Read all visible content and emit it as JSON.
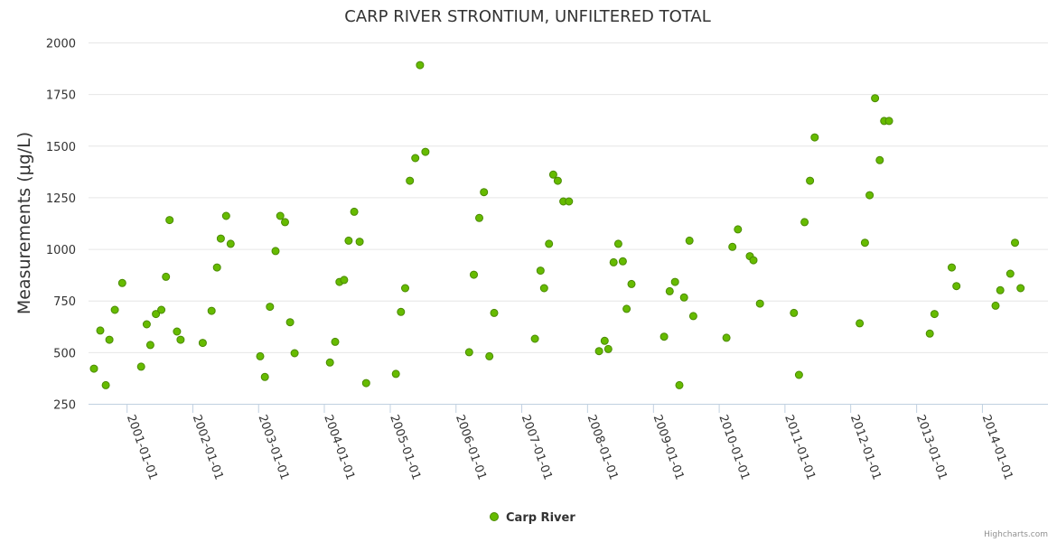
{
  "chart_data": {
    "type": "scatter",
    "title": "CARP RIVER STRONTIUM, UNFILTERED TOTAL",
    "ylabel": "Measurements (μg/L)",
    "xlabel": "",
    "ylim": [
      250,
      2000
    ],
    "xlim": [
      "2000-06-01",
      "2014-12-31"
    ],
    "y_ticks": [
      250,
      500,
      750,
      1000,
      1250,
      1500,
      1750,
      2000
    ],
    "x_ticks": [
      "2001-01-01",
      "2002-01-01",
      "2003-01-01",
      "2004-01-01",
      "2005-01-01",
      "2006-01-01",
      "2007-01-01",
      "2008-01-01",
      "2009-01-01",
      "2010-01-01",
      "2011-01-01",
      "2012-01-01",
      "2013-01-01",
      "2014-01-01"
    ],
    "grid": "horizontal",
    "legend_position": "bottom-center",
    "series": [
      {
        "name": "Carp River",
        "color": "#66bb00",
        "points": [
          {
            "x": "2000-07-01",
            "y": 420
          },
          {
            "x": "2000-08-05",
            "y": 605
          },
          {
            "x": "2000-09-05",
            "y": 340
          },
          {
            "x": "2000-09-25",
            "y": 560
          },
          {
            "x": "2000-10-25",
            "y": 705
          },
          {
            "x": "2000-12-05",
            "y": 835
          },
          {
            "x": "2001-03-20",
            "y": 430
          },
          {
            "x": "2001-04-20",
            "y": 635
          },
          {
            "x": "2001-05-10",
            "y": 535
          },
          {
            "x": "2001-06-10",
            "y": 685
          },
          {
            "x": "2001-07-10",
            "y": 705
          },
          {
            "x": "2001-08-05",
            "y": 865
          },
          {
            "x": "2001-08-25",
            "y": 1140
          },
          {
            "x": "2001-10-05",
            "y": 600
          },
          {
            "x": "2001-10-25",
            "y": 560
          },
          {
            "x": "2002-02-25",
            "y": 545
          },
          {
            "x": "2002-04-15",
            "y": 700
          },
          {
            "x": "2002-05-15",
            "y": 910
          },
          {
            "x": "2002-06-05",
            "y": 1050
          },
          {
            "x": "2002-07-05",
            "y": 1160
          },
          {
            "x": "2002-07-30",
            "y": 1025
          },
          {
            "x": "2003-01-10",
            "y": 480
          },
          {
            "x": "2003-02-05",
            "y": 380
          },
          {
            "x": "2003-03-05",
            "y": 720
          },
          {
            "x": "2003-04-05",
            "y": 990
          },
          {
            "x": "2003-05-01",
            "y": 1160
          },
          {
            "x": "2003-05-28",
            "y": 1130
          },
          {
            "x": "2003-06-25",
            "y": 645
          },
          {
            "x": "2003-07-20",
            "y": 495
          },
          {
            "x": "2004-02-01",
            "y": 450
          },
          {
            "x": "2004-03-01",
            "y": 550
          },
          {
            "x": "2004-03-25",
            "y": 840
          },
          {
            "x": "2004-04-20",
            "y": 850
          },
          {
            "x": "2004-05-15",
            "y": 1040
          },
          {
            "x": "2004-06-15",
            "y": 1180
          },
          {
            "x": "2004-07-15",
            "y": 1035
          },
          {
            "x": "2004-08-20",
            "y": 350
          },
          {
            "x": "2005-02-01",
            "y": 395
          },
          {
            "x": "2005-03-01",
            "y": 695
          },
          {
            "x": "2005-03-25",
            "y": 810
          },
          {
            "x": "2005-04-20",
            "y": 1330
          },
          {
            "x": "2005-05-20",
            "y": 1440
          },
          {
            "x": "2005-06-15",
            "y": 1890
          },
          {
            "x": "2005-07-15",
            "y": 1470
          },
          {
            "x": "2006-03-15",
            "y": 500
          },
          {
            "x": "2006-04-10",
            "y": 875
          },
          {
            "x": "2006-05-10",
            "y": 1150
          },
          {
            "x": "2006-06-05",
            "y": 1275
          },
          {
            "x": "2006-07-05",
            "y": 480
          },
          {
            "x": "2006-08-01",
            "y": 690
          },
          {
            "x": "2007-03-15",
            "y": 565
          },
          {
            "x": "2007-04-15",
            "y": 895
          },
          {
            "x": "2007-05-05",
            "y": 810
          },
          {
            "x": "2007-06-01",
            "y": 1025
          },
          {
            "x": "2007-06-25",
            "y": 1360
          },
          {
            "x": "2007-07-20",
            "y": 1330
          },
          {
            "x": "2007-08-20",
            "y": 1230
          },
          {
            "x": "2007-09-20",
            "y": 1230
          },
          {
            "x": "2008-03-05",
            "y": 505
          },
          {
            "x": "2008-04-05",
            "y": 555
          },
          {
            "x": "2008-04-25",
            "y": 515
          },
          {
            "x": "2008-05-25",
            "y": 935
          },
          {
            "x": "2008-06-20",
            "y": 1025
          },
          {
            "x": "2008-07-15",
            "y": 940
          },
          {
            "x": "2008-08-05",
            "y": 710
          },
          {
            "x": "2008-09-01",
            "y": 830
          },
          {
            "x": "2009-03-01",
            "y": 575
          },
          {
            "x": "2009-04-01",
            "y": 795
          },
          {
            "x": "2009-05-01",
            "y": 840
          },
          {
            "x": "2009-05-25",
            "y": 340
          },
          {
            "x": "2009-06-20",
            "y": 765
          },
          {
            "x": "2009-07-20",
            "y": 1040
          },
          {
            "x": "2009-08-10",
            "y": 675
          },
          {
            "x": "2010-02-10",
            "y": 570
          },
          {
            "x": "2010-03-15",
            "y": 1010
          },
          {
            "x": "2010-04-15",
            "y": 1095
          },
          {
            "x": "2010-06-20",
            "y": 965
          },
          {
            "x": "2010-07-10",
            "y": 945
          },
          {
            "x": "2010-08-15",
            "y": 735
          },
          {
            "x": "2011-02-20",
            "y": 690
          },
          {
            "x": "2011-03-20",
            "y": 390
          },
          {
            "x": "2011-04-20",
            "y": 1130
          },
          {
            "x": "2011-05-20",
            "y": 1330
          },
          {
            "x": "2011-06-15",
            "y": 1540
          },
          {
            "x": "2012-02-20",
            "y": 640
          },
          {
            "x": "2012-03-20",
            "y": 1030
          },
          {
            "x": "2012-04-15",
            "y": 1260
          },
          {
            "x": "2012-05-15",
            "y": 1730
          },
          {
            "x": "2012-06-10",
            "y": 1430
          },
          {
            "x": "2012-07-05",
            "y": 1620
          },
          {
            "x": "2012-08-01",
            "y": 1620
          },
          {
            "x": "2013-03-15",
            "y": 590
          },
          {
            "x": "2013-04-10",
            "y": 685
          },
          {
            "x": "2013-07-15",
            "y": 910
          },
          {
            "x": "2013-08-10",
            "y": 820
          },
          {
            "x": "2014-03-15",
            "y": 725
          },
          {
            "x": "2014-04-10",
            "y": 800
          },
          {
            "x": "2014-06-05",
            "y": 880
          },
          {
            "x": "2014-07-01",
            "y": 1030
          },
          {
            "x": "2014-08-01",
            "y": 810
          }
        ]
      }
    ]
  },
  "credits": "Highcharts.com"
}
